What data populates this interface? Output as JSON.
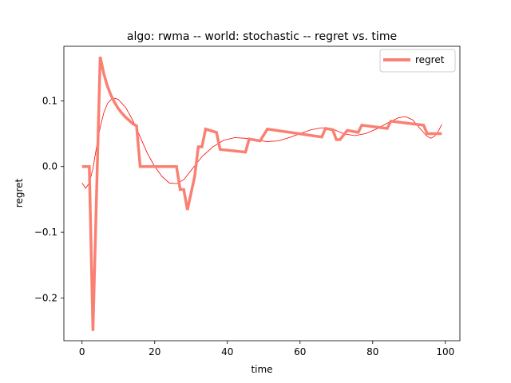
{
  "chart_data": {
    "type": "line",
    "title": "algo: rwma -- world: stochastic -- regret vs. time",
    "xlabel": "time",
    "ylabel": "regret",
    "xlim": [
      -5,
      104
    ],
    "ylim": [
      -0.265,
      0.183
    ],
    "xticks": [
      0,
      20,
      40,
      60,
      80,
      100
    ],
    "xtick_labels": [
      "0",
      "20",
      "40",
      "60",
      "80",
      "100"
    ],
    "yticks": [
      -0.2,
      -0.1,
      0.0,
      0.1
    ],
    "ytick_labels": [
      "−0.2",
      "−0.1",
      "0.0",
      "0.1"
    ],
    "legend_position": "top-right",
    "grid": false,
    "series": [
      {
        "name": "regret",
        "color": "#fa8072",
        "style": "thick",
        "x": [
          0,
          2,
          3,
          5,
          6,
          7,
          8,
          9,
          10,
          11,
          12,
          13,
          14,
          15,
          16,
          26,
          27,
          28,
          29,
          31,
          32,
          33,
          34,
          37,
          38,
          45,
          46,
          49,
          51,
          66,
          67,
          69,
          70,
          71,
          73,
          74,
          76,
          77,
          84,
          85,
          94,
          95,
          99
        ],
        "y": [
          0.0,
          0.0,
          -0.25,
          0.167,
          0.141,
          0.122,
          0.108,
          0.097,
          0.088,
          0.081,
          0.075,
          0.07,
          0.065,
          0.062,
          0.0,
          0.0,
          -0.035,
          -0.035,
          -0.066,
          -0.015,
          0.03,
          0.03,
          0.057,
          0.052,
          0.026,
          0.022,
          0.042,
          0.039,
          0.057,
          0.045,
          0.058,
          0.056,
          0.041,
          0.041,
          0.055,
          0.054,
          0.052,
          0.063,
          0.058,
          0.069,
          0.063,
          0.05,
          0.05
        ]
      },
      {
        "color": "#ff0000",
        "style": "thin",
        "x": [
          0,
          1,
          2,
          3,
          4,
          5,
          6,
          7,
          8,
          9,
          10,
          12,
          14,
          16,
          18,
          20,
          22,
          24,
          26,
          28,
          30,
          33,
          36,
          39,
          42,
          45,
          48,
          51,
          54,
          57,
          60,
          63,
          66,
          69,
          72,
          75,
          78,
          81,
          84,
          87,
          89,
          91,
          93,
          95,
          96,
          97,
          98,
          99
        ],
        "y": [
          -0.025,
          -0.033,
          -0.025,
          -0.003,
          0.03,
          0.06,
          0.082,
          0.096,
          0.102,
          0.104,
          0.102,
          0.09,
          0.07,
          0.045,
          0.02,
          0.0,
          -0.015,
          -0.025,
          -0.026,
          -0.02,
          -0.006,
          0.015,
          0.03,
          0.04,
          0.044,
          0.043,
          0.04,
          0.038,
          0.039,
          0.044,
          0.05,
          0.056,
          0.059,
          0.057,
          0.05,
          0.047,
          0.05,
          0.057,
          0.066,
          0.074,
          0.076,
          0.071,
          0.058,
          0.046,
          0.043,
          0.046,
          0.053,
          0.064
        ]
      }
    ]
  }
}
